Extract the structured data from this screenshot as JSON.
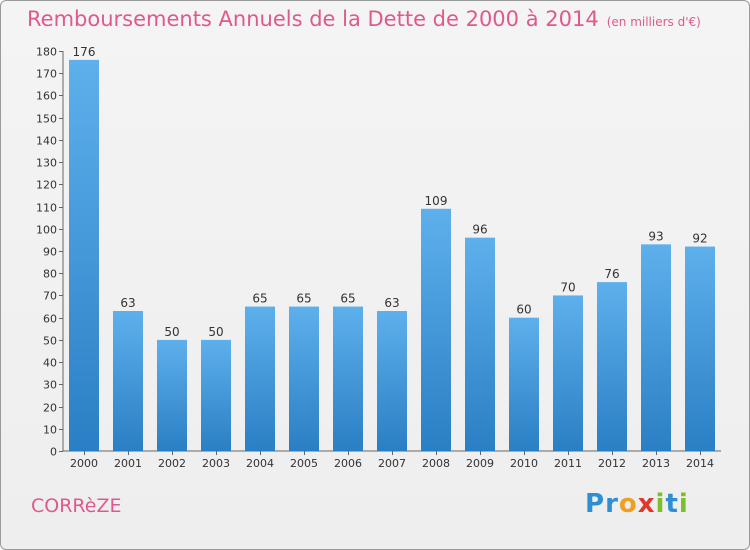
{
  "chart_data": {
    "type": "bar",
    "title": "Remboursements Annuels de la Dette de 2000 à 2014",
    "subtitle": "(en milliers d'€)",
    "categories": [
      "2000",
      "2001",
      "2002",
      "2003",
      "2004",
      "2005",
      "2006",
      "2007",
      "2008",
      "2009",
      "2010",
      "2011",
      "2012",
      "2013",
      "2014"
    ],
    "values": [
      176,
      63,
      50,
      50,
      65,
      65,
      65,
      63,
      109,
      96,
      60,
      70,
      76,
      93,
      92
    ],
    "ylim": [
      0,
      180
    ],
    "yticks": [
      0,
      10,
      20,
      30,
      40,
      50,
      60,
      70,
      80,
      90,
      100,
      110,
      120,
      130,
      140,
      150,
      160,
      170,
      180
    ],
    "grid": false,
    "data_labels": true,
    "bar_color": "#3d94d6"
  },
  "footer": {
    "region": "CORRèZE",
    "logo_letters": [
      {
        "ch": "P",
        "color": "#2f8fd2"
      },
      {
        "ch": "r",
        "color": "#2f8fd2"
      },
      {
        "ch": "o",
        "color": "#f0a020"
      },
      {
        "ch": "x",
        "color": "#e0362c"
      },
      {
        "ch": "i",
        "color": "#7bbf2a"
      },
      {
        "ch": "t",
        "color": "#2f8fd2"
      },
      {
        "ch": "i",
        "color": "#7bbf2a"
      }
    ]
  }
}
